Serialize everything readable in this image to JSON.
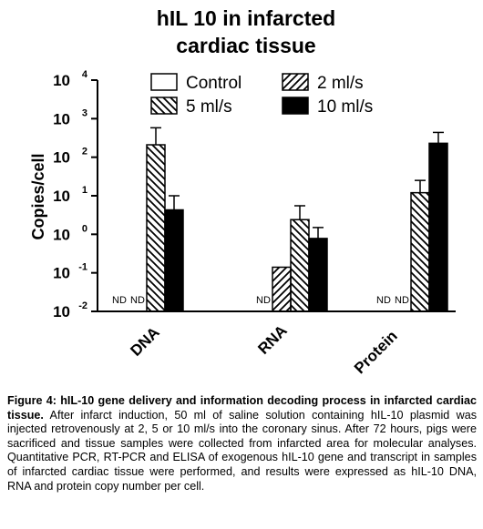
{
  "chart_data": {
    "type": "bar",
    "title_lines": [
      "hIL 10 in infarcted",
      "cardiac tissue"
    ],
    "ylabel": "Copies/cell",
    "y_scale": "log",
    "ylim": [
      0.01,
      10000
    ],
    "y_ticks": [
      {
        "value": 0.01,
        "base": "10",
        "exp": "-2"
      },
      {
        "value": 0.1,
        "base": "10",
        "exp": "-1"
      },
      {
        "value": 1,
        "base": "10",
        "exp": "0"
      },
      {
        "value": 10,
        "base": "10",
        "exp": "1"
      },
      {
        "value": 100,
        "base": "10",
        "exp": "2"
      },
      {
        "value": 1000,
        "base": "10",
        "exp": "3"
      },
      {
        "value": 10000,
        "base": "10",
        "exp": "4"
      }
    ],
    "categories": [
      "DNA",
      "RNA",
      "Protein"
    ],
    "not_detected_label": "ND",
    "series": [
      {
        "name": "Control",
        "fill": "none",
        "values": [
          null,
          null,
          null
        ],
        "errors": [
          null,
          null,
          null
        ],
        "nd": [
          true,
          true,
          true
        ]
      },
      {
        "name": "2 ml/s",
        "fill": "hatch-forward",
        "values": [
          null,
          0.14,
          null
        ],
        "errors": [
          null,
          null,
          null
        ],
        "nd": [
          true,
          false,
          true
        ]
      },
      {
        "name": "5 ml/s",
        "fill": "hatch-backward",
        "values": [
          210,
          2.4,
          12
        ],
        "errors": [
          580,
          5.5,
          25
        ],
        "nd": [
          false,
          false,
          false
        ]
      },
      {
        "name": "10 ml/s",
        "fill": "solid",
        "values": [
          4.3,
          0.78,
          230
        ],
        "errors": [
          10,
          1.5,
          440
        ],
        "nd": [
          false,
          false,
          false
        ]
      }
    ],
    "legend_position": "top"
  },
  "caption": {
    "figure_label": "Figure 4:",
    "bold_title": "hIL-10 gene delivery and information decoding process in infarcted cardiac tissue.",
    "body": "After infarct induction, 50 ml of saline solution containing hIL-10 plasmid was injected retrovenously at 2, 5 or 10 ml/s into the coronary sinus. After 72 hours, pigs were sacrificed and tissue samples were collected from infarcted area for molecular analyses. Quantitative PCR, RT-PCR and ELISA of exogenous hIL-10 gene and transcript in samples of infarcted cardiac tissue were performed, and results were expressed as hIL-10 DNA, RNA and protein copy number per cell."
  }
}
